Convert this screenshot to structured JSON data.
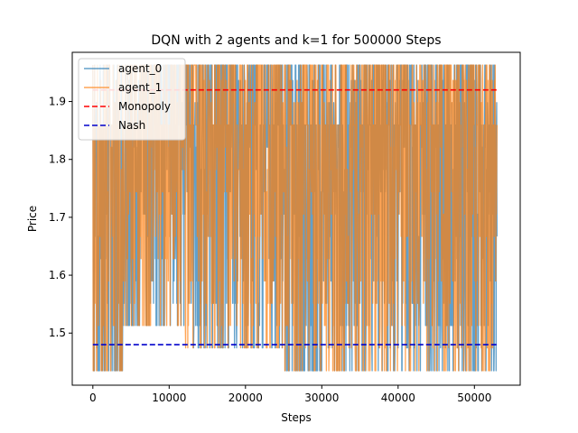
{
  "chart_data": {
    "type": "line",
    "title": "DQN with 2 agents and k=1 for 500000 Steps",
    "xlabel": "Steps",
    "ylabel": "Price",
    "xlim": [
      -2700,
      56000
    ],
    "ylim": [
      1.41,
      1.985
    ],
    "xticks": [
      0,
      10000,
      20000,
      30000,
      40000,
      50000
    ],
    "yticks": [
      1.5,
      1.6,
      1.7,
      1.8,
      1.9
    ],
    "grid": false,
    "legend_position": "top-left",
    "price_levels": [
      1.435,
      1.4745,
      1.513,
      1.5515,
      1.59,
      1.6285,
      1.667,
      1.7055,
      1.744,
      1.7825,
      1.821,
      1.8595,
      1.898,
      1.9365,
      1.963
    ],
    "series": [
      {
        "name": "agent_0",
        "kind": "agent",
        "color": "#1f77b4",
        "opacity": 0.7,
        "x_range": [
          0,
          53000
        ],
        "typical_range": [
          1.435,
          1.963
        ],
        "segments": [
          {
            "x": [
              0,
              4000
            ],
            "levels": [
              1.435,
              1.963
            ],
            "low_bias": 0.6
          },
          {
            "x": [
              4000,
              12000
            ],
            "levels": [
              1.513,
              1.963
            ],
            "low_bias": 0.25
          },
          {
            "x": [
              12000,
              25000
            ],
            "levels": [
              1.474,
              1.963
            ],
            "low_bias": 0.15
          },
          {
            "x": [
              25000,
              29000
            ],
            "levels": [
              1.435,
              1.963
            ],
            "low_bias": 0.45
          },
          {
            "x": [
              29000,
              53000
            ],
            "levels": [
              1.435,
              1.963
            ],
            "low_bias": 0.2
          }
        ]
      },
      {
        "name": "agent_1",
        "kind": "agent",
        "color": "#ff7f0e",
        "opacity": 0.7,
        "x_range": [
          0,
          53000
        ],
        "typical_range": [
          1.435,
          1.963
        ],
        "segments": [
          {
            "x": [
              0,
              4000
            ],
            "levels": [
              1.435,
              1.963
            ],
            "low_bias": 0.6
          },
          {
            "x": [
              4000,
              12000
            ],
            "levels": [
              1.513,
              1.963
            ],
            "low_bias": 0.25
          },
          {
            "x": [
              12000,
              25000
            ],
            "levels": [
              1.474,
              1.963
            ],
            "low_bias": 0.15
          },
          {
            "x": [
              25000,
              29000
            ],
            "levels": [
              1.435,
              1.963
            ],
            "low_bias": 0.45
          },
          {
            "x": [
              29000,
              53000
            ],
            "levels": [
              1.435,
              1.963
            ],
            "low_bias": 0.2
          }
        ]
      },
      {
        "name": "Monopoly",
        "kind": "reference",
        "color": "#ff0000",
        "dash": "dashed",
        "x": [
          0,
          53000
        ],
        "y": [
          1.92,
          1.92
        ]
      },
      {
        "name": "Nash",
        "kind": "reference",
        "color": "#0000cc",
        "dash": "dashed",
        "x": [
          0,
          53000
        ],
        "y": [
          1.48,
          1.48
        ]
      }
    ]
  }
}
